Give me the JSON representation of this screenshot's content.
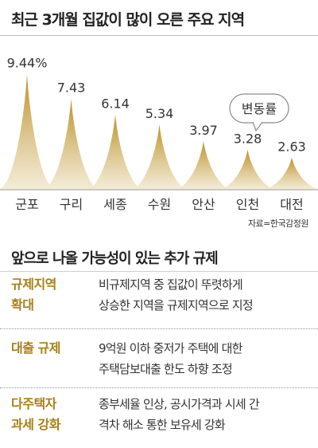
{
  "title": "최근 3개월 집값이 많이 오른 주요 지역",
  "chart_data": {
    "type": "area",
    "title": "최근 3개월 집값이 많이 오른 주요 지역",
    "categories": [
      "군포",
      "구리",
      "세종",
      "수원",
      "안산",
      "인천",
      "대전"
    ],
    "values": [
      9.44,
      7.43,
      6.14,
      5.34,
      3.97,
      3.28,
      2.63
    ],
    "value_labels": [
      "9.44%",
      "7.43",
      "6.14",
      "5.34",
      "3.97",
      "3.28",
      "2.63"
    ],
    "legend": "변동률",
    "ylim": [
      0,
      10
    ],
    "grid": false,
    "colors": {
      "peak": "#b98c1d",
      "base": "#f4ecd8",
      "baseline": "#999999"
    }
  },
  "source": "자료=한국감정원",
  "policy_section": {
    "title": "앞으로 나올 가능성이 있는 추가 규제",
    "items": [
      {
        "label_lines": [
          "규제지역",
          "확대"
        ],
        "desc_lines": [
          "비규제지역 중 집값이 뚜렷하게",
          "상승한 지역을 규제지역으로 지정"
        ]
      },
      {
        "label_lines": [
          "대출 규제"
        ],
        "desc_lines": [
          "9억원 이하 중저가 주택에 대한",
          "주택담보대출 한도 하향 조정"
        ]
      },
      {
        "label_lines": [
          "다주택자",
          "과세 강화"
        ],
        "desc_lines": [
          "종부세율 인상, 공시가격과 시세 간",
          "격차 해소 통한 보유세 강화"
        ]
      }
    ]
  }
}
